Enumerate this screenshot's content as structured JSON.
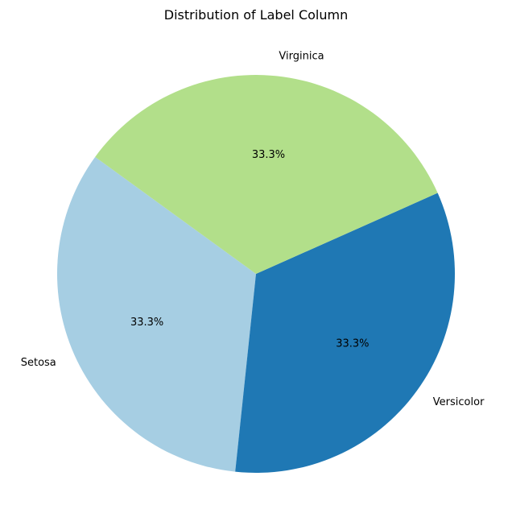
{
  "chart_data": {
    "type": "pie",
    "title": "Distribution of Label Column",
    "slices": [
      {
        "label": "Setosa",
        "value": 33.3,
        "pct_label": "33.3%",
        "color": "#a6cee3"
      },
      {
        "label": "Versicolor",
        "value": 33.3,
        "pct_label": "33.3%",
        "color": "#1f78b4"
      },
      {
        "label": "Virginica",
        "value": 33.3,
        "pct_label": "33.3%",
        "color": "#b2df8a"
      }
    ],
    "legend": "none"
  }
}
